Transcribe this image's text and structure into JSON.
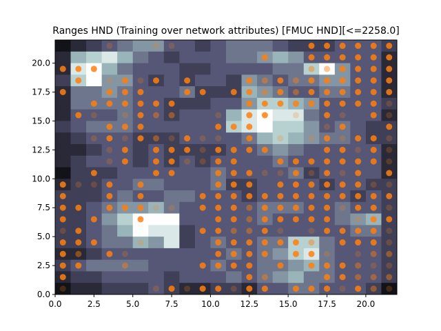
{
  "chart_data": {
    "type": "heatmap",
    "title": "Ranges HND (Training over network attributes) [FMUC HND][<=2258.0]",
    "xlim": [
      0,
      22
    ],
    "ylim": [
      0,
      22
    ],
    "xticks": [
      0.0,
      2.5,
      5.0,
      7.5,
      10.0,
      12.5,
      15.0,
      17.5,
      20.0
    ],
    "yticks": [
      0.0,
      2.5,
      5.0,
      7.5,
      10.0,
      12.5,
      15.0,
      17.5,
      20.0
    ],
    "grid": false,
    "colormap": "bone",
    "cells": [
      "0123455332344432223332",
      "1678643233344565333331",
      "1896433322333344795331",
      "2795532323325434455331",
      "1445433342226543344331",
      "1444433222335776533332",
      "1333433233368988433331",
      "2344433333378977534322",
      "1233322233334676544322",
      "1123323222233454333331",
      "1233323232333343333331",
      "0222333333433334233331",
      "1223344333422333323322",
      "2223433443332333333232",
      "2234556433333444334332",
      "2235799933333433334562",
      "2234698823333333333442",
      "2234465823433447743332",
      "1123333333343457843332",
      "2344443333433445643332",
      "1223333233343456443332",
      "0112223211221334433320"
    ],
    "points": [
      [
        0.5,
        0.5,
        "d"
      ],
      [
        6.5,
        0.5,
        "d"
      ],
      [
        7.5,
        0.5,
        "b"
      ],
      [
        8.5,
        0.5,
        "d"
      ],
      [
        9.5,
        0.5,
        "b"
      ],
      [
        10.5,
        0.5,
        "b"
      ],
      [
        11.5,
        0.5,
        "d"
      ],
      [
        12.5,
        0.5,
        "b"
      ],
      [
        13.5,
        0.5,
        "b"
      ],
      [
        15.5,
        0.5,
        "b"
      ],
      [
        16.5,
        0.5,
        "b"
      ],
      [
        17.5,
        0.5,
        "b"
      ],
      [
        18.5,
        0.5,
        "d"
      ],
      [
        19.5,
        0.5,
        "b"
      ],
      [
        20.5,
        0.5,
        "m"
      ],
      [
        21.5,
        0.5,
        "d"
      ],
      [
        0.5,
        1.5,
        "b"
      ],
      [
        12.5,
        1.5,
        "b"
      ],
      [
        13.5,
        1.5,
        "m"
      ],
      [
        17.5,
        1.5,
        "b"
      ],
      [
        18.5,
        1.5,
        "b"
      ],
      [
        19.5,
        1.5,
        "m"
      ],
      [
        20.5,
        1.5,
        "m"
      ],
      [
        21.5,
        1.5,
        "m"
      ],
      [
        0.5,
        2.5,
        "b"
      ],
      [
        1.5,
        2.5,
        "b"
      ],
      [
        4.5,
        2.5,
        "m"
      ],
      [
        9.5,
        2.5,
        "b"
      ],
      [
        10.5,
        2.5,
        "b"
      ],
      [
        11.5,
        2.5,
        "b"
      ],
      [
        12.5,
        2.5,
        "b"
      ],
      [
        14.5,
        2.5,
        "b"
      ],
      [
        16.5,
        2.5,
        "b"
      ],
      [
        17.5,
        2.5,
        "b"
      ],
      [
        18.5,
        2.5,
        "b"
      ],
      [
        19.5,
        2.5,
        "m"
      ],
      [
        20.5,
        2.5,
        "d"
      ],
      [
        21.5,
        2.5,
        "d"
      ],
      [
        0.5,
        3.5,
        "b"
      ],
      [
        1.5,
        3.5,
        "m"
      ],
      [
        3.5,
        3.5,
        "b"
      ],
      [
        4.5,
        3.5,
        "d"
      ],
      [
        10.5,
        3.5,
        "b"
      ],
      [
        11.5,
        3.5,
        "b"
      ],
      [
        12.5,
        3.5,
        "b"
      ],
      [
        13.5,
        3.5,
        "b"
      ],
      [
        15.5,
        3.5,
        "b"
      ],
      [
        16.5,
        3.5,
        "b"
      ],
      [
        17.5,
        3.5,
        "d"
      ],
      [
        19.5,
        3.5,
        "d"
      ],
      [
        20.5,
        3.5,
        "m"
      ],
      [
        21.5,
        3.5,
        "m"
      ],
      [
        0.5,
        4.5,
        "b"
      ],
      [
        1.5,
        4.5,
        "b"
      ],
      [
        2.5,
        4.5,
        "b"
      ],
      [
        5.5,
        4.5,
        "d"
      ],
      [
        10.5,
        4.5,
        "b"
      ],
      [
        11.5,
        4.5,
        "b"
      ],
      [
        12.5,
        4.5,
        "b"
      ],
      [
        13.5,
        4.5,
        "b"
      ],
      [
        14.5,
        4.5,
        "b"
      ],
      [
        15.5,
        4.5,
        "b"
      ],
      [
        16.5,
        4.5,
        "m"
      ],
      [
        18.5,
        4.5,
        "b"
      ],
      [
        19.5,
        4.5,
        "b"
      ],
      [
        20.5,
        4.5,
        "b"
      ],
      [
        21.5,
        4.5,
        "d"
      ],
      [
        0.5,
        5.5,
        "d"
      ],
      [
        1.5,
        5.5,
        "b"
      ],
      [
        9.5,
        5.5,
        "b"
      ],
      [
        10.5,
        5.5,
        "b"
      ],
      [
        11.5,
        5.5,
        "m"
      ],
      [
        12.5,
        5.5,
        "m"
      ],
      [
        13.5,
        5.5,
        "b"
      ],
      [
        14.5,
        5.5,
        "d"
      ],
      [
        16.5,
        5.5,
        "d"
      ],
      [
        17.5,
        5.5,
        "b"
      ],
      [
        18.5,
        5.5,
        "b"
      ],
      [
        19.5,
        5.5,
        "b"
      ],
      [
        20.5,
        5.5,
        "b"
      ],
      [
        21.5,
        5.5,
        "d"
      ],
      [
        0.5,
        6.5,
        "b"
      ],
      [
        2.5,
        6.5,
        "b"
      ],
      [
        5.5,
        6.5,
        "b"
      ],
      [
        10.5,
        6.5,
        "b"
      ],
      [
        11.5,
        6.5,
        "b"
      ],
      [
        12.5,
        6.5,
        "m"
      ],
      [
        13.5,
        6.5,
        "b"
      ],
      [
        14.5,
        6.5,
        "b"
      ],
      [
        15.5,
        6.5,
        "b"
      ],
      [
        16.5,
        6.5,
        "b"
      ],
      [
        17.5,
        6.5,
        "b"
      ],
      [
        19.5,
        6.5,
        "d"
      ],
      [
        20.5,
        6.5,
        "b"
      ],
      [
        21.5,
        6.5,
        "b"
      ],
      [
        0.5,
        7.5,
        "b"
      ],
      [
        1.5,
        7.5,
        "b"
      ],
      [
        3.5,
        7.5,
        "b"
      ],
      [
        4.5,
        7.5,
        "b"
      ],
      [
        5.5,
        7.5,
        "b"
      ],
      [
        6.5,
        7.5,
        "d"
      ],
      [
        7.5,
        7.5,
        "d"
      ],
      [
        9.5,
        7.5,
        "b"
      ],
      [
        10.5,
        7.5,
        "b"
      ],
      [
        11.5,
        7.5,
        "b"
      ],
      [
        12.5,
        7.5,
        "m"
      ],
      [
        13.5,
        7.5,
        "b"
      ],
      [
        14.5,
        7.5,
        "b"
      ],
      [
        15.5,
        7.5,
        "b"
      ],
      [
        16.5,
        7.5,
        "b"
      ],
      [
        17.5,
        7.5,
        "b"
      ],
      [
        18.5,
        7.5,
        "d"
      ],
      [
        19.5,
        7.5,
        "b"
      ],
      [
        20.5,
        7.5,
        "b"
      ],
      [
        21.5,
        7.5,
        "d"
      ],
      [
        0.5,
        8.5,
        "b"
      ],
      [
        3.5,
        8.5,
        "b"
      ],
      [
        5.5,
        8.5,
        "b"
      ],
      [
        9.5,
        8.5,
        "b"
      ],
      [
        10.5,
        8.5,
        "b"
      ],
      [
        11.5,
        8.5,
        "b"
      ],
      [
        12.5,
        8.5,
        "b"
      ],
      [
        13.5,
        8.5,
        "b"
      ],
      [
        14.5,
        8.5,
        "b"
      ],
      [
        15.5,
        8.5,
        "b"
      ],
      [
        16.5,
        8.5,
        "b"
      ],
      [
        17.5,
        8.5,
        "b"
      ],
      [
        18.5,
        8.5,
        "b"
      ],
      [
        19.5,
        8.5,
        "b"
      ],
      [
        20.5,
        8.5,
        "b"
      ],
      [
        21.5,
        8.5,
        "b"
      ],
      [
        0.5,
        9.5,
        "b"
      ],
      [
        1.5,
        9.5,
        "d"
      ],
      [
        2.5,
        9.5,
        "d"
      ],
      [
        3.5,
        9.5,
        "b"
      ],
      [
        5.5,
        9.5,
        "b"
      ],
      [
        10.5,
        9.5,
        "b"
      ],
      [
        11.5,
        9.5,
        "b"
      ],
      [
        12.5,
        9.5,
        "b"
      ],
      [
        14.5,
        9.5,
        "b"
      ],
      [
        15.5,
        9.5,
        "b"
      ],
      [
        16.5,
        9.5,
        "b"
      ],
      [
        17.5,
        9.5,
        "b"
      ],
      [
        18.5,
        9.5,
        "b"
      ],
      [
        19.5,
        9.5,
        "b"
      ],
      [
        20.5,
        9.5,
        "d"
      ],
      [
        21.5,
        9.5,
        "d"
      ],
      [
        2.5,
        10.5,
        "b"
      ],
      [
        6.5,
        10.5,
        "b"
      ],
      [
        7.5,
        10.5,
        "b"
      ],
      [
        10.5,
        10.5,
        "b"
      ],
      [
        11.5,
        10.5,
        "b"
      ],
      [
        12.5,
        10.5,
        "b"
      ],
      [
        13.5,
        10.5,
        "d"
      ],
      [
        14.5,
        10.5,
        "d"
      ],
      [
        15.5,
        10.5,
        "b"
      ],
      [
        16.5,
        10.5,
        "d"
      ],
      [
        17.5,
        10.5,
        "b"
      ],
      [
        18.5,
        10.5,
        "d"
      ],
      [
        19.5,
        10.5,
        "b"
      ],
      [
        21.5,
        10.5,
        "b"
      ],
      [
        3.5,
        11.5,
        "d"
      ],
      [
        4.5,
        11.5,
        "b"
      ],
      [
        6.5,
        11.5,
        "b"
      ],
      [
        7.5,
        11.5,
        "b"
      ],
      [
        8.5,
        11.5,
        "d"
      ],
      [
        9.5,
        11.5,
        "d"
      ],
      [
        10.5,
        11.5,
        "b"
      ],
      [
        11.5,
        11.5,
        "b"
      ],
      [
        14.5,
        11.5,
        "b"
      ],
      [
        15.5,
        11.5,
        "b"
      ],
      [
        16.5,
        11.5,
        "b"
      ],
      [
        17.5,
        11.5,
        "b"
      ],
      [
        18.5,
        11.5,
        "b"
      ],
      [
        19.5,
        11.5,
        "b"
      ],
      [
        20.5,
        11.5,
        "b"
      ],
      [
        21.5,
        11.5,
        "d"
      ],
      [
        3.5,
        12.5,
        "d"
      ],
      [
        4.5,
        12.5,
        "b"
      ],
      [
        6.5,
        12.5,
        "b"
      ],
      [
        7.5,
        12.5,
        "b"
      ],
      [
        8.5,
        12.5,
        "b"
      ],
      [
        9.5,
        12.5,
        "d"
      ],
      [
        10.5,
        12.5,
        "b"
      ],
      [
        11.5,
        12.5,
        "b"
      ],
      [
        12.5,
        12.5,
        "b"
      ],
      [
        13.5,
        12.5,
        "b"
      ],
      [
        17.5,
        12.5,
        "b"
      ],
      [
        18.5,
        12.5,
        "b"
      ],
      [
        19.5,
        12.5,
        "d"
      ],
      [
        20.5,
        12.5,
        "b"
      ],
      [
        21.5,
        12.5,
        "d"
      ],
      [
        2.5,
        13.5,
        "d"
      ],
      [
        3.5,
        13.5,
        "b"
      ],
      [
        4.5,
        13.5,
        "d"
      ],
      [
        5.5,
        13.5,
        "b"
      ],
      [
        6.5,
        13.5,
        "m"
      ],
      [
        7.5,
        13.5,
        "d"
      ],
      [
        8.5,
        13.5,
        "b"
      ],
      [
        9.5,
        13.5,
        "d"
      ],
      [
        10.5,
        13.5,
        "d"
      ],
      [
        12.5,
        13.5,
        "b"
      ],
      [
        14.5,
        13.5,
        "d"
      ],
      [
        16.5,
        13.5,
        "d"
      ],
      [
        17.5,
        13.5,
        "b"
      ],
      [
        18.5,
        13.5,
        "d"
      ],
      [
        19.5,
        13.5,
        "b"
      ],
      [
        20.5,
        13.5,
        "b"
      ],
      [
        21.5,
        13.5,
        "d"
      ],
      [
        3.5,
        14.5,
        "b"
      ],
      [
        4.5,
        14.5,
        "b"
      ],
      [
        5.5,
        14.5,
        "b"
      ],
      [
        10.5,
        14.5,
        "b"
      ],
      [
        11.5,
        14.5,
        "b"
      ],
      [
        12.5,
        14.5,
        "b"
      ],
      [
        17.5,
        14.5,
        "d"
      ],
      [
        18.5,
        14.5,
        "b"
      ],
      [
        21.5,
        14.5,
        "b"
      ],
      [
        1.5,
        15.5,
        "b"
      ],
      [
        2.5,
        15.5,
        "d"
      ],
      [
        4.5,
        15.5,
        "d"
      ],
      [
        5.5,
        15.5,
        "b"
      ],
      [
        6.5,
        15.5,
        "m"
      ],
      [
        7.5,
        15.5,
        "m"
      ],
      [
        10.5,
        15.5,
        "d"
      ],
      [
        12.5,
        15.5,
        "b"
      ],
      [
        13.5,
        15.5,
        "b"
      ],
      [
        15.5,
        15.5,
        "d"
      ],
      [
        17.5,
        15.5,
        "b"
      ],
      [
        18.5,
        15.5,
        "d"
      ],
      [
        20.5,
        15.5,
        "b"
      ],
      [
        21.5,
        15.5,
        "d"
      ],
      [
        2.5,
        16.5,
        "b"
      ],
      [
        3.5,
        16.5,
        "b"
      ],
      [
        4.5,
        16.5,
        "b"
      ],
      [
        5.5,
        16.5,
        "b"
      ],
      [
        6.5,
        16.5,
        "b"
      ],
      [
        7.5,
        16.5,
        "b"
      ],
      [
        12.5,
        16.5,
        "b"
      ],
      [
        13.5,
        16.5,
        "b"
      ],
      [
        14.5,
        16.5,
        "b"
      ],
      [
        15.5,
        16.5,
        "b"
      ],
      [
        16.5,
        16.5,
        "b"
      ],
      [
        17.5,
        16.5,
        "b"
      ],
      [
        18.5,
        16.5,
        "b"
      ],
      [
        19.5,
        16.5,
        "b"
      ],
      [
        20.5,
        16.5,
        "b"
      ],
      [
        21.5,
        16.5,
        "d"
      ],
      [
        0.5,
        17.5,
        "b"
      ],
      [
        3.5,
        17.5,
        "b"
      ],
      [
        4.5,
        17.5,
        "b"
      ],
      [
        5.5,
        17.5,
        "b"
      ],
      [
        8.5,
        17.5,
        "b"
      ],
      [
        9.5,
        17.5,
        "b"
      ],
      [
        11.5,
        17.5,
        "b"
      ],
      [
        12.5,
        17.5,
        "b"
      ],
      [
        13.5,
        17.5,
        "m"
      ],
      [
        14.5,
        17.5,
        "b"
      ],
      [
        15.5,
        17.5,
        "m"
      ],
      [
        16.5,
        17.5,
        "b"
      ],
      [
        17.5,
        17.5,
        "b"
      ],
      [
        18.5,
        17.5,
        "b"
      ],
      [
        19.5,
        17.5,
        "b"
      ],
      [
        20.5,
        17.5,
        "b"
      ],
      [
        21.5,
        17.5,
        "b"
      ],
      [
        1.5,
        18.5,
        "b"
      ],
      [
        3.5,
        18.5,
        "d"
      ],
      [
        4.5,
        18.5,
        "b"
      ],
      [
        5.5,
        18.5,
        "d"
      ],
      [
        6.5,
        18.5,
        "b"
      ],
      [
        8.5,
        18.5,
        "b"
      ],
      [
        12.5,
        18.5,
        "b"
      ],
      [
        13.5,
        18.5,
        "m"
      ],
      [
        14.5,
        18.5,
        "b"
      ],
      [
        15.5,
        18.5,
        "m"
      ],
      [
        16.5,
        18.5,
        "b"
      ],
      [
        17.5,
        18.5,
        "b"
      ],
      [
        18.5,
        18.5,
        "b"
      ],
      [
        19.5,
        18.5,
        "b"
      ],
      [
        20.5,
        18.5,
        "b"
      ],
      [
        21.5,
        18.5,
        "b"
      ],
      [
        0.5,
        19.5,
        "b"
      ],
      [
        1.5,
        19.5,
        "b"
      ],
      [
        2.5,
        19.5,
        "b"
      ],
      [
        16.5,
        19.5,
        "m"
      ],
      [
        17.5,
        19.5,
        "m"
      ],
      [
        18.5,
        19.5,
        "b"
      ],
      [
        19.5,
        19.5,
        "b"
      ],
      [
        20.5,
        19.5,
        "b"
      ],
      [
        21.5,
        19.5,
        "b"
      ],
      [
        13.5,
        20.5,
        "b"
      ],
      [
        16.5,
        20.5,
        "b"
      ],
      [
        17.5,
        20.5,
        "b"
      ],
      [
        18.5,
        20.5,
        "b"
      ],
      [
        19.5,
        20.5,
        "b"
      ],
      [
        20.5,
        20.5,
        "b"
      ],
      [
        21.5,
        20.5,
        "b"
      ],
      [
        3.5,
        21.5,
        "d"
      ],
      [
        6.5,
        21.5,
        "d"
      ],
      [
        7.5,
        21.5,
        "d"
      ],
      [
        16.5,
        21.5,
        "b"
      ],
      [
        17.5,
        21.5,
        "b"
      ],
      [
        18.5,
        21.5,
        "b"
      ],
      [
        19.5,
        21.5,
        "b"
      ],
      [
        20.5,
        21.5,
        "b"
      ],
      [
        21.5,
        21.5,
        "b"
      ]
    ],
    "point_color": "#ff7f0e"
  }
}
